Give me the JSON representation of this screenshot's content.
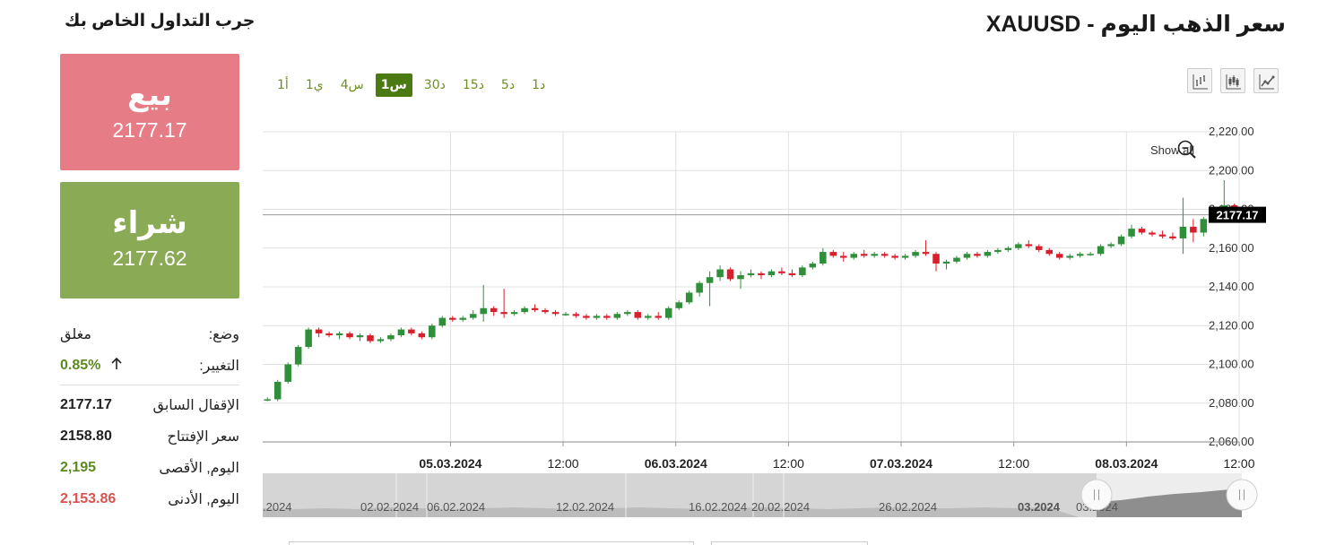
{
  "header": {
    "title": "سعر الذهب اليوم - XAUUSD",
    "side_title": "جرب التداول الخاص بك"
  },
  "trade": {
    "sell_label": "بيع",
    "sell_price": "2177.17",
    "buy_label": "شراء",
    "buy_price": "2177.62"
  },
  "market": {
    "status_label": "وضع:",
    "status_value": "مغلق",
    "change_label": "التغيير:",
    "change_value": "0.85%",
    "change_arrow": "arrow-up-icon",
    "prev_close_label": "الإقفال السابق",
    "prev_close_value": "2177.17",
    "open_label": "سعر الإفتتاح",
    "open_value": "2158.80",
    "high_label": "اليوم, الأقصى",
    "high_value": "2,195",
    "low_label": "اليوم, الأدنى",
    "low_value": "2,153.86"
  },
  "timeframes": [
    "1د",
    "5د",
    "15د",
    "30د",
    "1س",
    "4س",
    "1ي",
    "1أ"
  ],
  "active_timeframe": "1س",
  "chart_type_buttons": [
    "line-chart-icon",
    "candlestick-icon",
    "bar-chart-icon"
  ],
  "colors": {
    "up": "#2f8f3a",
    "down": "#d81f2c",
    "accent_green": "#4c7a12",
    "sell_bg": "#e67c85",
    "buy_bg": "#8aaa56",
    "low_red": "#d9534f"
  },
  "chart_data": {
    "type": "candlestick",
    "ylim": [
      2060,
      2220
    ],
    "yticks": [
      "2,220.00",
      "2,200.00",
      "2,180.00",
      "2,160.00",
      "2,140.00",
      "2,120.00",
      "2,100.00",
      "2,080.00",
      "2,060.00"
    ],
    "xticks": [
      {
        "label": "05.03.2024",
        "bold": true,
        "pos": 20
      },
      {
        "label": "12:00",
        "bold": false,
        "pos": 32
      },
      {
        "label": "06.03.2024",
        "bold": true,
        "pos": 44
      },
      {
        "label": "12:00",
        "bold": false,
        "pos": 56
      },
      {
        "label": "07.03.2024",
        "bold": true,
        "pos": 68
      },
      {
        "label": "12:00",
        "bold": false,
        "pos": 80
      },
      {
        "label": "08.03.2024",
        "bold": true,
        "pos": 92
      },
      {
        "label": "12:00",
        "bold": false,
        "pos": 104
      }
    ],
    "current_price": "2177.17",
    "current_value": 2177.17,
    "show_all_label": "Show all",
    "candles": [
      [
        2082,
        2083,
        2081,
        2082
      ],
      [
        2082,
        2092,
        2081,
        2091
      ],
      [
        2091,
        2101,
        2090,
        2100
      ],
      [
        2100,
        2110,
        2099,
        2109
      ],
      [
        2109,
        2119,
        2108,
        2118
      ],
      [
        2118,
        2119,
        2114,
        2116
      ],
      [
        2116,
        2117,
        2114,
        2115
      ],
      [
        2115,
        2117,
        2113,
        2116
      ],
      [
        2116,
        2117,
        2113,
        2114
      ],
      [
        2114,
        2116,
        2112,
        2115
      ],
      [
        2115,
        2116,
        2111,
        2112
      ],
      [
        2112,
        2114,
        2111,
        2113
      ],
      [
        2113,
        2116,
        2112,
        2115
      ],
      [
        2115,
        2119,
        2114,
        2118
      ],
      [
        2118,
        2119,
        2115,
        2116
      ],
      [
        2116,
        2117,
        2113,
        2114
      ],
      [
        2114,
        2121,
        2113,
        2120
      ],
      [
        2120,
        2125,
        2119,
        2124
      ],
      [
        2124,
        2125,
        2122,
        2123
      ],
      [
        2123,
        2125,
        2122,
        2124
      ],
      [
        2124,
        2128,
        2123,
        2126
      ],
      [
        2126,
        2141,
        2122,
        2129
      ],
      [
        2129,
        2130,
        2125,
        2127
      ],
      [
        2127,
        2139,
        2124,
        2126
      ],
      [
        2126,
        2128,
        2125,
        2127
      ],
      [
        2127,
        2130,
        2126,
        2129
      ],
      [
        2129,
        2131,
        2127,
        2128
      ],
      [
        2128,
        2129,
        2126,
        2127
      ],
      [
        2127,
        2128,
        2125,
        2126
      ],
      [
        2126,
        2127,
        2125,
        2126
      ],
      [
        2126,
        2127,
        2124,
        2125
      ],
      [
        2125,
        2126,
        2123,
        2124
      ],
      [
        2124,
        2126,
        2123,
        2125
      ],
      [
        2125,
        2126,
        2123,
        2124
      ],
      [
        2124,
        2127,
        2123,
        2126
      ],
      [
        2126,
        2128,
        2125,
        2127
      ],
      [
        2127,
        2128,
        2123,
        2124
      ],
      [
        2124,
        2126,
        2123,
        2125
      ],
      [
        2125,
        2127,
        2123,
        2124
      ],
      [
        2124,
        2130,
        2123,
        2129
      ],
      [
        2129,
        2133,
        2128,
        2132
      ],
      [
        2132,
        2138,
        2131,
        2137
      ],
      [
        2137,
        2143,
        2135,
        2142
      ],
      [
        2142,
        2148,
        2130,
        2145
      ],
      [
        2145,
        2151,
        2143,
        2149
      ],
      [
        2149,
        2150,
        2143,
        2144
      ],
      [
        2144,
        2148,
        2139,
        2146
      ],
      [
        2146,
        2149,
        2145,
        2147
      ],
      [
        2147,
        2148,
        2144,
        2146
      ],
      [
        2146,
        2149,
        2145,
        2148
      ],
      [
        2148,
        2150,
        2146,
        2147
      ],
      [
        2147,
        2149,
        2145,
        2146
      ],
      [
        2146,
        2151,
        2145,
        2150
      ],
      [
        2150,
        2153,
        2149,
        2152
      ],
      [
        2152,
        2160,
        2151,
        2158
      ],
      [
        2158,
        2159,
        2155,
        2156
      ],
      [
        2156,
        2158,
        2153,
        2155
      ],
      [
        2155,
        2158,
        2154,
        2157
      ],
      [
        2157,
        2159,
        2155,
        2156
      ],
      [
        2156,
        2158,
        2155,
        2157
      ],
      [
        2157,
        2158,
        2155,
        2156
      ],
      [
        2156,
        2157,
        2154,
        2155
      ],
      [
        2155,
        2157,
        2154,
        2156
      ],
      [
        2156,
        2159,
        2155,
        2158
      ],
      [
        2158,
        2164,
        2156,
        2157
      ],
      [
        2157,
        2158,
        2148,
        2152
      ],
      [
        2152,
        2154,
        2149,
        2153
      ],
      [
        2153,
        2156,
        2152,
        2155
      ],
      [
        2155,
        2158,
        2154,
        2157
      ],
      [
        2157,
        2158,
        2155,
        2156
      ],
      [
        2156,
        2159,
        2155,
        2158
      ],
      [
        2158,
        2160,
        2157,
        2159
      ],
      [
        2159,
        2161,
        2158,
        2160
      ],
      [
        2160,
        2163,
        2159,
        2162
      ],
      [
        2162,
        2164,
        2160,
        2161
      ],
      [
        2161,
        2162,
        2158,
        2159
      ],
      [
        2159,
        2160,
        2156,
        2157
      ],
      [
        2157,
        2158,
        2154,
        2155
      ],
      [
        2155,
        2157,
        2154,
        2156
      ],
      [
        2156,
        2158,
        2155,
        2157
      ],
      [
        2157,
        2158,
        2156,
        2157
      ],
      [
        2157,
        2162,
        2156,
        2161
      ],
      [
        2161,
        2163,
        2160,
        2162
      ],
      [
        2162,
        2167,
        2161,
        2166
      ],
      [
        2166,
        2172,
        2165,
        2170
      ],
      [
        2170,
        2171,
        2167,
        2168
      ],
      [
        2168,
        2169,
        2166,
        2167
      ],
      [
        2167,
        2169,
        2165,
        2166
      ],
      [
        2166,
        2168,
        2164,
        2165
      ],
      [
        2165,
        2186,
        2157,
        2171
      ],
      [
        2171,
        2175,
        2163,
        2168
      ],
      [
        2168,
        2176,
        2166,
        2175
      ],
      [
        2175,
        2179,
        2173,
        2178
      ],
      [
        2178,
        2195,
        2176,
        2182
      ],
      [
        2182,
        2183,
        2176,
        2177
      ]
    ],
    "navigator": {
      "labels": [
        ".2024",
        "02.02.2024",
        "06.02.2024",
        "12.02.2024",
        "16.02.2024",
        "20.02.2024",
        "26.02.2024",
        "03.2024",
        "03.2024"
      ]
    }
  }
}
